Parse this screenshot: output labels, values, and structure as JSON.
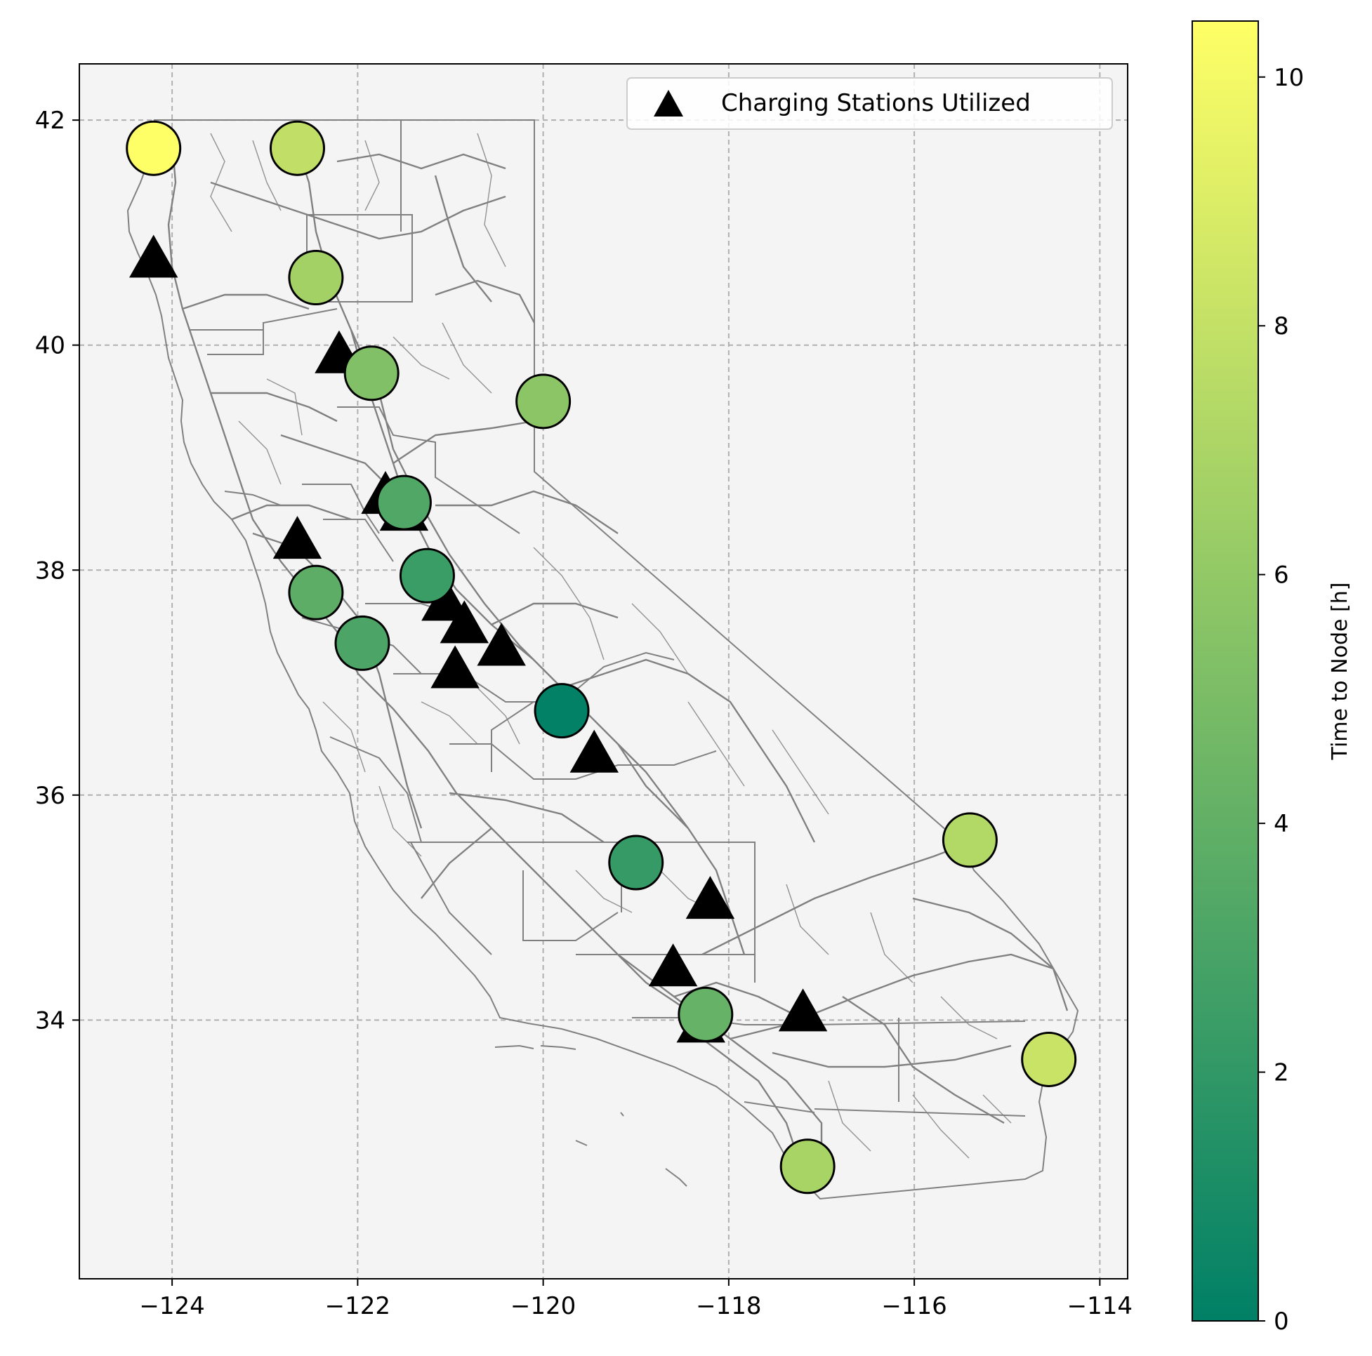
{
  "chart_data": {
    "type": "scatter",
    "title": "",
    "xlabel": "",
    "ylabel": "",
    "xlim": [
      -125,
      -113.7
    ],
    "ylim": [
      31.7,
      42.5
    ],
    "x_ticks": [
      {
        "value": -124,
        "label": "−124"
      },
      {
        "value": -122,
        "label": "−122"
      },
      {
        "value": -120,
        "label": "−120"
      },
      {
        "value": -118,
        "label": "−118"
      },
      {
        "value": -116,
        "label": "−116"
      },
      {
        "value": -114,
        "label": "−114"
      }
    ],
    "y_ticks": [
      {
        "value": 34,
        "label": "34"
      },
      {
        "value": 36,
        "label": "36"
      },
      {
        "value": 38,
        "label": "38"
      },
      {
        "value": 40,
        "label": "40"
      },
      {
        "value": 42,
        "label": "42"
      }
    ],
    "grid": true,
    "legend": {
      "placement": "top-right",
      "entries": [
        "Charging Stations Utilized"
      ]
    },
    "colorbar": {
      "label": "Time to Node [h]",
      "range": [
        0,
        10.45
      ],
      "ticks": [
        "0",
        "2",
        "4",
        "6",
        "8",
        "10"
      ],
      "colors": [
        "#008066",
        "#339966",
        "#66b266",
        "#99cc66",
        "#cce566",
        "#ffff66"
      ]
    },
    "series": [
      {
        "name": "Charging Stations Utilized",
        "marker": "triangle",
        "points": [
          {
            "x": -124.2,
            "y": 40.75
          },
          {
            "x": -122.2,
            "y": 39.9
          },
          {
            "x": -121.7,
            "y": 38.65
          },
          {
            "x": -121.5,
            "y": 38.5
          },
          {
            "x": -122.65,
            "y": 38.25
          },
          {
            "x": -121.05,
            "y": 37.7
          },
          {
            "x": -120.85,
            "y": 37.5
          },
          {
            "x": -120.45,
            "y": 37.3
          },
          {
            "x": -120.95,
            "y": 37.1
          },
          {
            "x": -119.45,
            "y": 36.35
          },
          {
            "x": -118.2,
            "y": 35.05
          },
          {
            "x": -118.6,
            "y": 34.45
          },
          {
            "x": -117.2,
            "y": 34.05
          },
          {
            "x": -118.3,
            "y": 33.95
          }
        ]
      },
      {
        "marker": "circle",
        "points": [
          {
            "x": -124.2,
            "y": 41.75,
            "value": 10.4
          },
          {
            "x": -122.65,
            "y": 41.75,
            "value": 7.9
          },
          {
            "x": -122.45,
            "y": 40.6,
            "value": 6.7
          },
          {
            "x": -121.85,
            "y": 39.75,
            "value": 5.3
          },
          {
            "x": -120.0,
            "y": 39.5,
            "value": 5.7
          },
          {
            "x": -121.5,
            "y": 38.6,
            "value": 3.3
          },
          {
            "x": -121.25,
            "y": 37.95,
            "value": 2.4
          },
          {
            "x": -122.45,
            "y": 37.8,
            "value": 3.8
          },
          {
            "x": -121.95,
            "y": 37.35,
            "value": 3.1
          },
          {
            "x": -119.8,
            "y": 36.75,
            "value": 0.1
          },
          {
            "x": -119.0,
            "y": 35.4,
            "value": 2.2
          },
          {
            "x": -115.4,
            "y": 35.6,
            "value": 7.3
          },
          {
            "x": -118.25,
            "y": 34.05,
            "value": 4.2
          },
          {
            "x": -114.55,
            "y": 33.65,
            "value": 8.2
          },
          {
            "x": -117.15,
            "y": 32.7,
            "value": 6.9
          }
        ]
      }
    ]
  },
  "colors": {
    "background": "#f4f4f4",
    "grid": "#b0b0b0",
    "roads": "#808080",
    "marker_edge": "#000000"
  }
}
